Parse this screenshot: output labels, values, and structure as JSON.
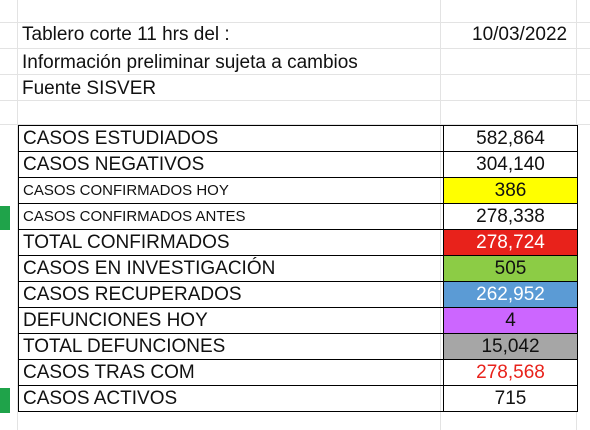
{
  "header": {
    "title": "Tablero corte 11 hrs del :",
    "date": "10/03/2022",
    "subtitle": "Información preliminar sujeta a cambios",
    "source": "Fuente SISVER"
  },
  "rows": [
    {
      "label": "CASOS ESTUDIADOS",
      "value": "582,864",
      "fill": "#ffffff",
      "text_color": "#111111"
    },
    {
      "label": "CASOS NEGATIVOS",
      "value": "304,140",
      "fill": "#ffffff",
      "text_color": "#111111"
    },
    {
      "label": "CASOS CONFIRMADOS HOY",
      "value": "386",
      "fill": "#ffff00",
      "text_color": "#111111"
    },
    {
      "label": "CASOS CONFIRMADOS ANTES",
      "value": "278,338",
      "fill": "#ffffff",
      "text_color": "#111111"
    },
    {
      "label": "TOTAL CONFIRMADOS",
      "value": "278,724",
      "fill": "#e8221b",
      "text_color": "#ffffff"
    },
    {
      "label": "CASOS EN INVESTIGACIÓN",
      "value": "505",
      "fill": "#8ccc45",
      "text_color": "#111111"
    },
    {
      "label": "CASOS RECUPERADOS",
      "value": "262,952",
      "fill": "#5b9bd5",
      "text_color": "#ffffff"
    },
    {
      "label": "DEFUNCIONES HOY",
      "value": "4",
      "fill": "#cc66ff",
      "text_color": "#111111"
    },
    {
      "label": "TOTAL DEFUNCIONES",
      "value": "15,042",
      "fill": "#a6a6a6",
      "text_color": "#111111"
    },
    {
      "label": "CASOS TRAS COM",
      "value": "278,568",
      "fill": "#ffffff",
      "text_color": "#e8221b"
    },
    {
      "label": "CASOS ACTIVOS",
      "value": "715",
      "fill": "#ffffff",
      "text_color": "#111111"
    }
  ],
  "colors": {
    "gridline": "#e3e3e3",
    "row_marker": "#1fa34a"
  }
}
